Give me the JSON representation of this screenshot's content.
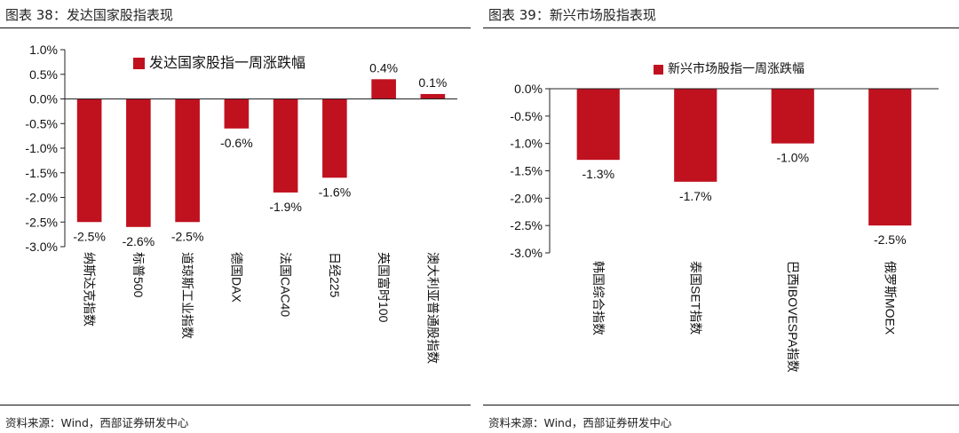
{
  "left": {
    "figure_title": "图表 38：发达国家股指表现",
    "source": "资料来源：Wind，西部证券研发中心",
    "chart_data": {
      "type": "bar",
      "legend": "发达国家股指一周涨跌幅",
      "categories": [
        "纳斯达克指数",
        "标普500",
        "道琼斯工业指数",
        "德国DAX",
        "法国CAC40",
        "日经225",
        "英国富时100",
        "澳大利亚普通股指数"
      ],
      "values": [
        -2.5,
        -2.6,
        -2.5,
        -0.6,
        -1.9,
        -1.6,
        0.4,
        0.1
      ],
      "value_labels": [
        "-2.5%",
        "-2.6%",
        "-2.5%",
        "-0.6%",
        "-1.9%",
        "-1.6%",
        "0.4%",
        "0.1%"
      ],
      "ylim": [
        -3.0,
        1.0
      ],
      "yticks": [
        1.0,
        0.5,
        0.0,
        -0.5,
        -1.0,
        -1.5,
        -2.0,
        -2.5,
        -3.0
      ],
      "ytick_labels": [
        "1.0%",
        "0.5%",
        "0.0%",
        "-0.5%",
        "-1.0%",
        "-1.5%",
        "-2.0%",
        "-2.5%",
        "-3.0%"
      ],
      "bar_color": "#c0111f",
      "grid": false,
      "legend_position": "top-center"
    }
  },
  "right": {
    "figure_title": "图表 39：新兴市场股指表现",
    "source": "资料来源：Wind，西部证券研发中心",
    "chart_data": {
      "type": "bar",
      "legend": "新兴市场股指一周涨跌幅",
      "categories": [
        "韩国综合指数",
        "泰国SET指数",
        "巴西IBOVESPA指数",
        "俄罗斯MOEX"
      ],
      "values": [
        -1.3,
        -1.7,
        -1.0,
        -2.5
      ],
      "value_labels": [
        "-1.3%",
        "-1.7%",
        "-1.0%",
        "-2.5%"
      ],
      "ylim": [
        -3.0,
        0.0
      ],
      "yticks": [
        0.0,
        -0.5,
        -1.0,
        -1.5,
        -2.0,
        -2.5,
        -3.0
      ],
      "ytick_labels": [
        "0.0%",
        "-0.5%",
        "-1.0%",
        "-1.5%",
        "-2.0%",
        "-2.5%",
        "-3.0%"
      ],
      "bar_color": "#c0111f",
      "grid": false,
      "legend_position": "top-center"
    }
  }
}
